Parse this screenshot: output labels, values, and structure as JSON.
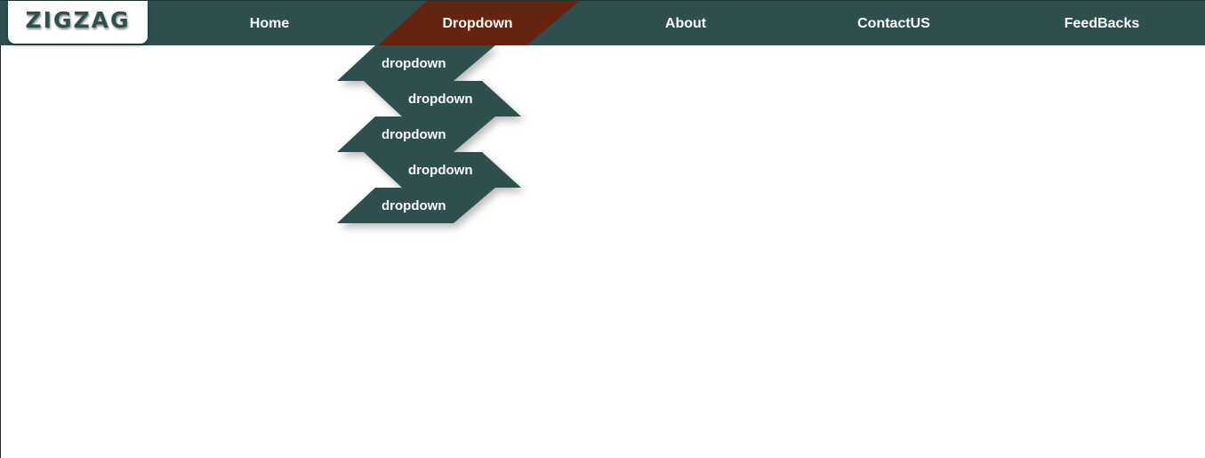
{
  "colors": {
    "navbar": "#2f4f4f",
    "active": "#65240f",
    "logo_bg": "#ffffff",
    "text": "#ffffff"
  },
  "logo": {
    "text": "ZIGZAG"
  },
  "nav": {
    "items": [
      {
        "label": "Home"
      },
      {
        "label": "Dropdown",
        "active": true
      },
      {
        "label": "About"
      },
      {
        "label": "ContactUS"
      },
      {
        "label": "FeedBacks"
      }
    ]
  },
  "dropdown": {
    "items": [
      {
        "label": "dropdown"
      },
      {
        "label": "dropdown"
      },
      {
        "label": "dropdown"
      },
      {
        "label": "dropdown"
      },
      {
        "label": "dropdown"
      }
    ]
  }
}
